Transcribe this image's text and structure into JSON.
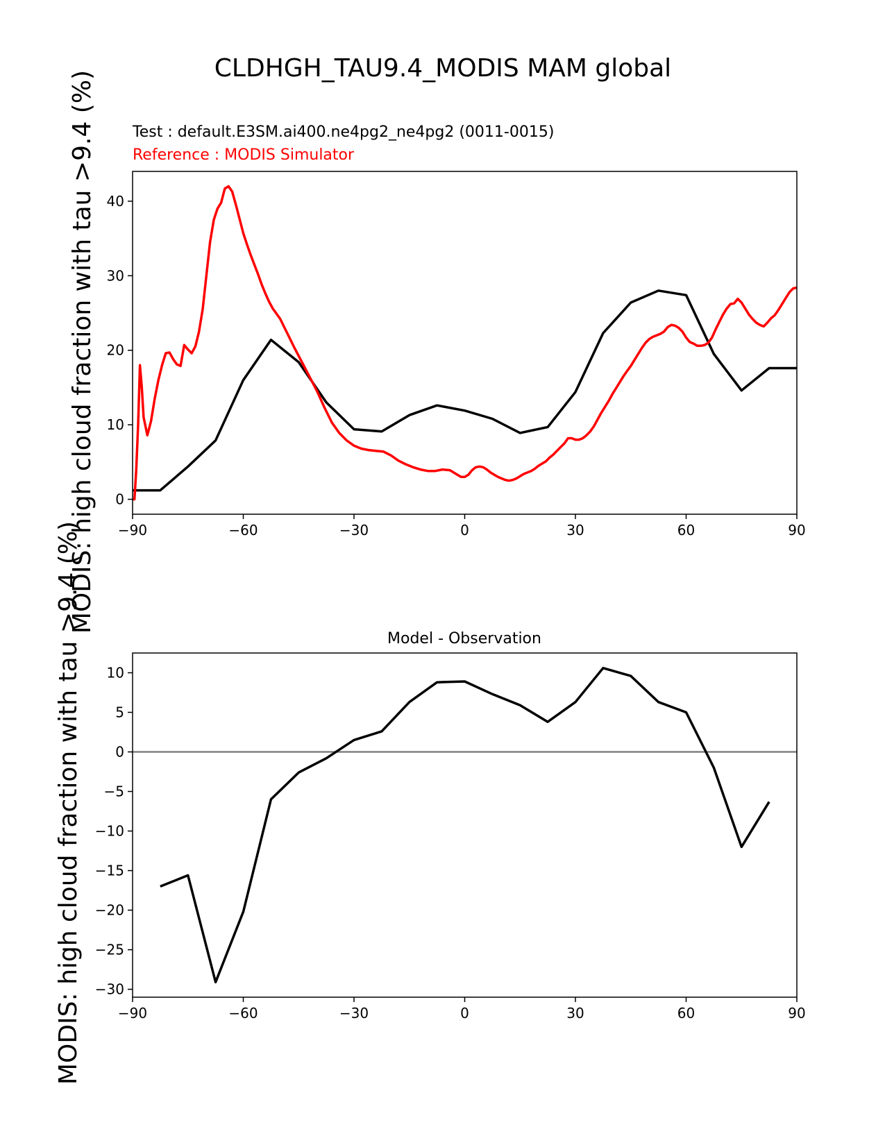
{
  "figure": {
    "title": "CLDHGH_TAU9.4_MODIS MAM global"
  },
  "chart_data": [
    {
      "type": "line",
      "title": "",
      "test_label": "Test : default.E3SM.ai400.ne4pg2_ne4pg2 (0011-0015)",
      "reference_label": "Reference : MODIS Simulator",
      "xlabel": "",
      "ylabel": "MODIS: high cloud fraction with tau >9.4 (%)",
      "xlim": [
        -90,
        90
      ],
      "ylim": [
        -2,
        44
      ],
      "xticks": [
        "−90",
        "−60",
        "−30",
        "0",
        "30",
        "60",
        "90"
      ],
      "xtick_values": [
        -90,
        -60,
        -30,
        0,
        30,
        60,
        90
      ],
      "yticks": [
        "0",
        "10",
        "20",
        "30",
        "40"
      ],
      "ytick_values": [
        0,
        10,
        20,
        30,
        40
      ],
      "series": [
        {
          "name": "Test : default.E3SM.ai400.ne4pg2_ne4pg2 (0011-0015)",
          "color": "#000000",
          "x": [
            -90,
            -82.5,
            -75,
            -67.5,
            -60,
            -52.5,
            -45,
            -37.5,
            -30,
            -22.5,
            -15,
            -7.5,
            0,
            7.5,
            15,
            22.5,
            30,
            37.5,
            45,
            52.5,
            60,
            67.5,
            75,
            82.5,
            90
          ],
          "y": [
            1.2,
            1.2,
            4.4,
            7.9,
            16.0,
            21.4,
            18.4,
            13.0,
            9.4,
            9.1,
            11.3,
            12.6,
            11.9,
            10.8,
            8.9,
            9.7,
            14.4,
            22.3,
            26.4,
            28.0,
            27.4,
            19.5,
            14.6,
            17.6,
            17.6
          ]
        },
        {
          "name": "Reference : MODIS Simulator",
          "color": "#ff0000",
          "x": [
            -90,
            -89.5,
            -89,
            -88.5,
            -88,
            -87.5,
            -87,
            -86,
            -85,
            -84,
            -83,
            -82,
            -81,
            -80,
            -79,
            -78,
            -77,
            -76,
            -75,
            -74,
            -73,
            -72,
            -71,
            -70,
            -69,
            -68,
            -67,
            -66,
            -65,
            -64,
            -63,
            -62,
            -61,
            -60,
            -59,
            -58,
            -57,
            -56,
            -55,
            -54,
            -53,
            -52,
            -51,
            -50,
            -48,
            -46,
            -44,
            -42,
            -40,
            -38,
            -36,
            -34,
            -32,
            -30,
            -28,
            -26,
            -24,
            -22,
            -20,
            -18,
            -16,
            -14,
            -12,
            -10,
            -8,
            -6,
            -4,
            -2,
            -1,
            0,
            1,
            2,
            3,
            4,
            5,
            6,
            7,
            8,
            9,
            10,
            11,
            12,
            13,
            14,
            15,
            16,
            17,
            18,
            19,
            20,
            21,
            22,
            23,
            24,
            25,
            26,
            27,
            28,
            29,
            30,
            31,
            32,
            33,
            34,
            35,
            36,
            37,
            38,
            39,
            40,
            41,
            42,
            43,
            44,
            45,
            46,
            47,
            48,
            49,
            50,
            51,
            52,
            53,
            54,
            55,
            56,
            57,
            58,
            59,
            60,
            61,
            62,
            63,
            64,
            65,
            66,
            67,
            68,
            69,
            70,
            71,
            72,
            73,
            74,
            75,
            76,
            77,
            78,
            79,
            80,
            81,
            82,
            83,
            84,
            85,
            86,
            87,
            88,
            89,
            90
          ],
          "y": [
            0,
            0,
            4,
            10,
            18,
            15,
            11,
            8.6,
            10.5,
            13.5,
            16,
            18,
            19.6,
            19.7,
            18.8,
            18.1,
            17.9,
            20.7,
            20.1,
            19.6,
            20.5,
            22.5,
            25.5,
            30,
            34.5,
            37.5,
            39,
            39.8,
            41.7,
            42,
            41.3,
            39.5,
            37.6,
            35.7,
            34.2,
            32.8,
            31.5,
            30.2,
            28.8,
            27.6,
            26.5,
            25.6,
            24.9,
            24.2,
            22.2,
            20.2,
            18.3,
            16.4,
            14.5,
            12.3,
            10.3,
            8.9,
            7.9,
            7.2,
            6.8,
            6.6,
            6.5,
            6.4,
            5.9,
            5.2,
            4.7,
            4.3,
            4.0,
            3.8,
            3.8,
            4.0,
            3.9,
            3.3,
            3.0,
            3.0,
            3.3,
            3.9,
            4.3,
            4.4,
            4.3,
            4.0,
            3.6,
            3.3,
            3.0,
            2.8,
            2.6,
            2.5,
            2.6,
            2.8,
            3.1,
            3.4,
            3.6,
            3.8,
            4.1,
            4.5,
            4.8,
            5.1,
            5.6,
            6.0,
            6.5,
            7.0,
            7.5,
            8.2,
            8.2,
            8.0,
            8.0,
            8.2,
            8.6,
            9.1,
            9.8,
            10.7,
            11.6,
            12.4,
            13.2,
            14.1,
            14.9,
            15.7,
            16.5,
            17.2,
            17.9,
            18.7,
            19.5,
            20.3,
            21.0,
            21.5,
            21.8,
            22.0,
            22.2,
            22.5,
            23.1,
            23.4,
            23.3,
            23.0,
            22.5,
            21.7,
            21.1,
            20.9,
            20.6,
            20.6,
            20.7,
            21.0,
            21.7,
            22.8,
            23.8,
            24.8,
            25.6,
            26.2,
            26.3,
            26.9,
            26.4,
            25.6,
            24.8,
            24.2,
            23.7,
            23.4,
            23.2,
            23.7,
            24.3,
            24.7,
            25.4,
            26.2,
            27.0,
            27.8,
            28.3,
            28.4
          ]
        }
      ]
    },
    {
      "type": "line",
      "title": "Model - Observation",
      "xlabel": "",
      "ylabel": "MODIS: high cloud fraction with tau >9.4 (%)",
      "xlim": [
        -90,
        90
      ],
      "ylim": [
        -31,
        12.5
      ],
      "xticks": [
        "−90",
        "−60",
        "−30",
        "0",
        "30",
        "60",
        "90"
      ],
      "xtick_values": [
        -90,
        -60,
        -30,
        0,
        30,
        60,
        90
      ],
      "yticks": [
        "10",
        "5",
        "0",
        "−5",
        "−10",
        "−15",
        "−20",
        "−25",
        "−30"
      ],
      "ytick_values": [
        10,
        5,
        0,
        -5,
        -10,
        -15,
        -20,
        -25,
        -30
      ],
      "zero_line_color": "#808080",
      "series": [
        {
          "color": "#000000",
          "x": [
            -82.5,
            -75,
            -67.5,
            -60,
            -52.5,
            -45,
            -37.5,
            -30,
            -22.5,
            -15,
            -7.5,
            0,
            7.5,
            15,
            22.5,
            30,
            37.5,
            45,
            52.5,
            60,
            67.5,
            75,
            82.5
          ],
          "y": [
            -17.0,
            -15.6,
            -29.1,
            -20.2,
            -6.0,
            -2.6,
            -0.8,
            1.5,
            2.6,
            6.3,
            8.8,
            8.9,
            7.3,
            5.9,
            3.8,
            6.3,
            10.6,
            9.6,
            6.3,
            5.0,
            -2.0,
            -12.0,
            -6.3
          ]
        }
      ]
    }
  ]
}
